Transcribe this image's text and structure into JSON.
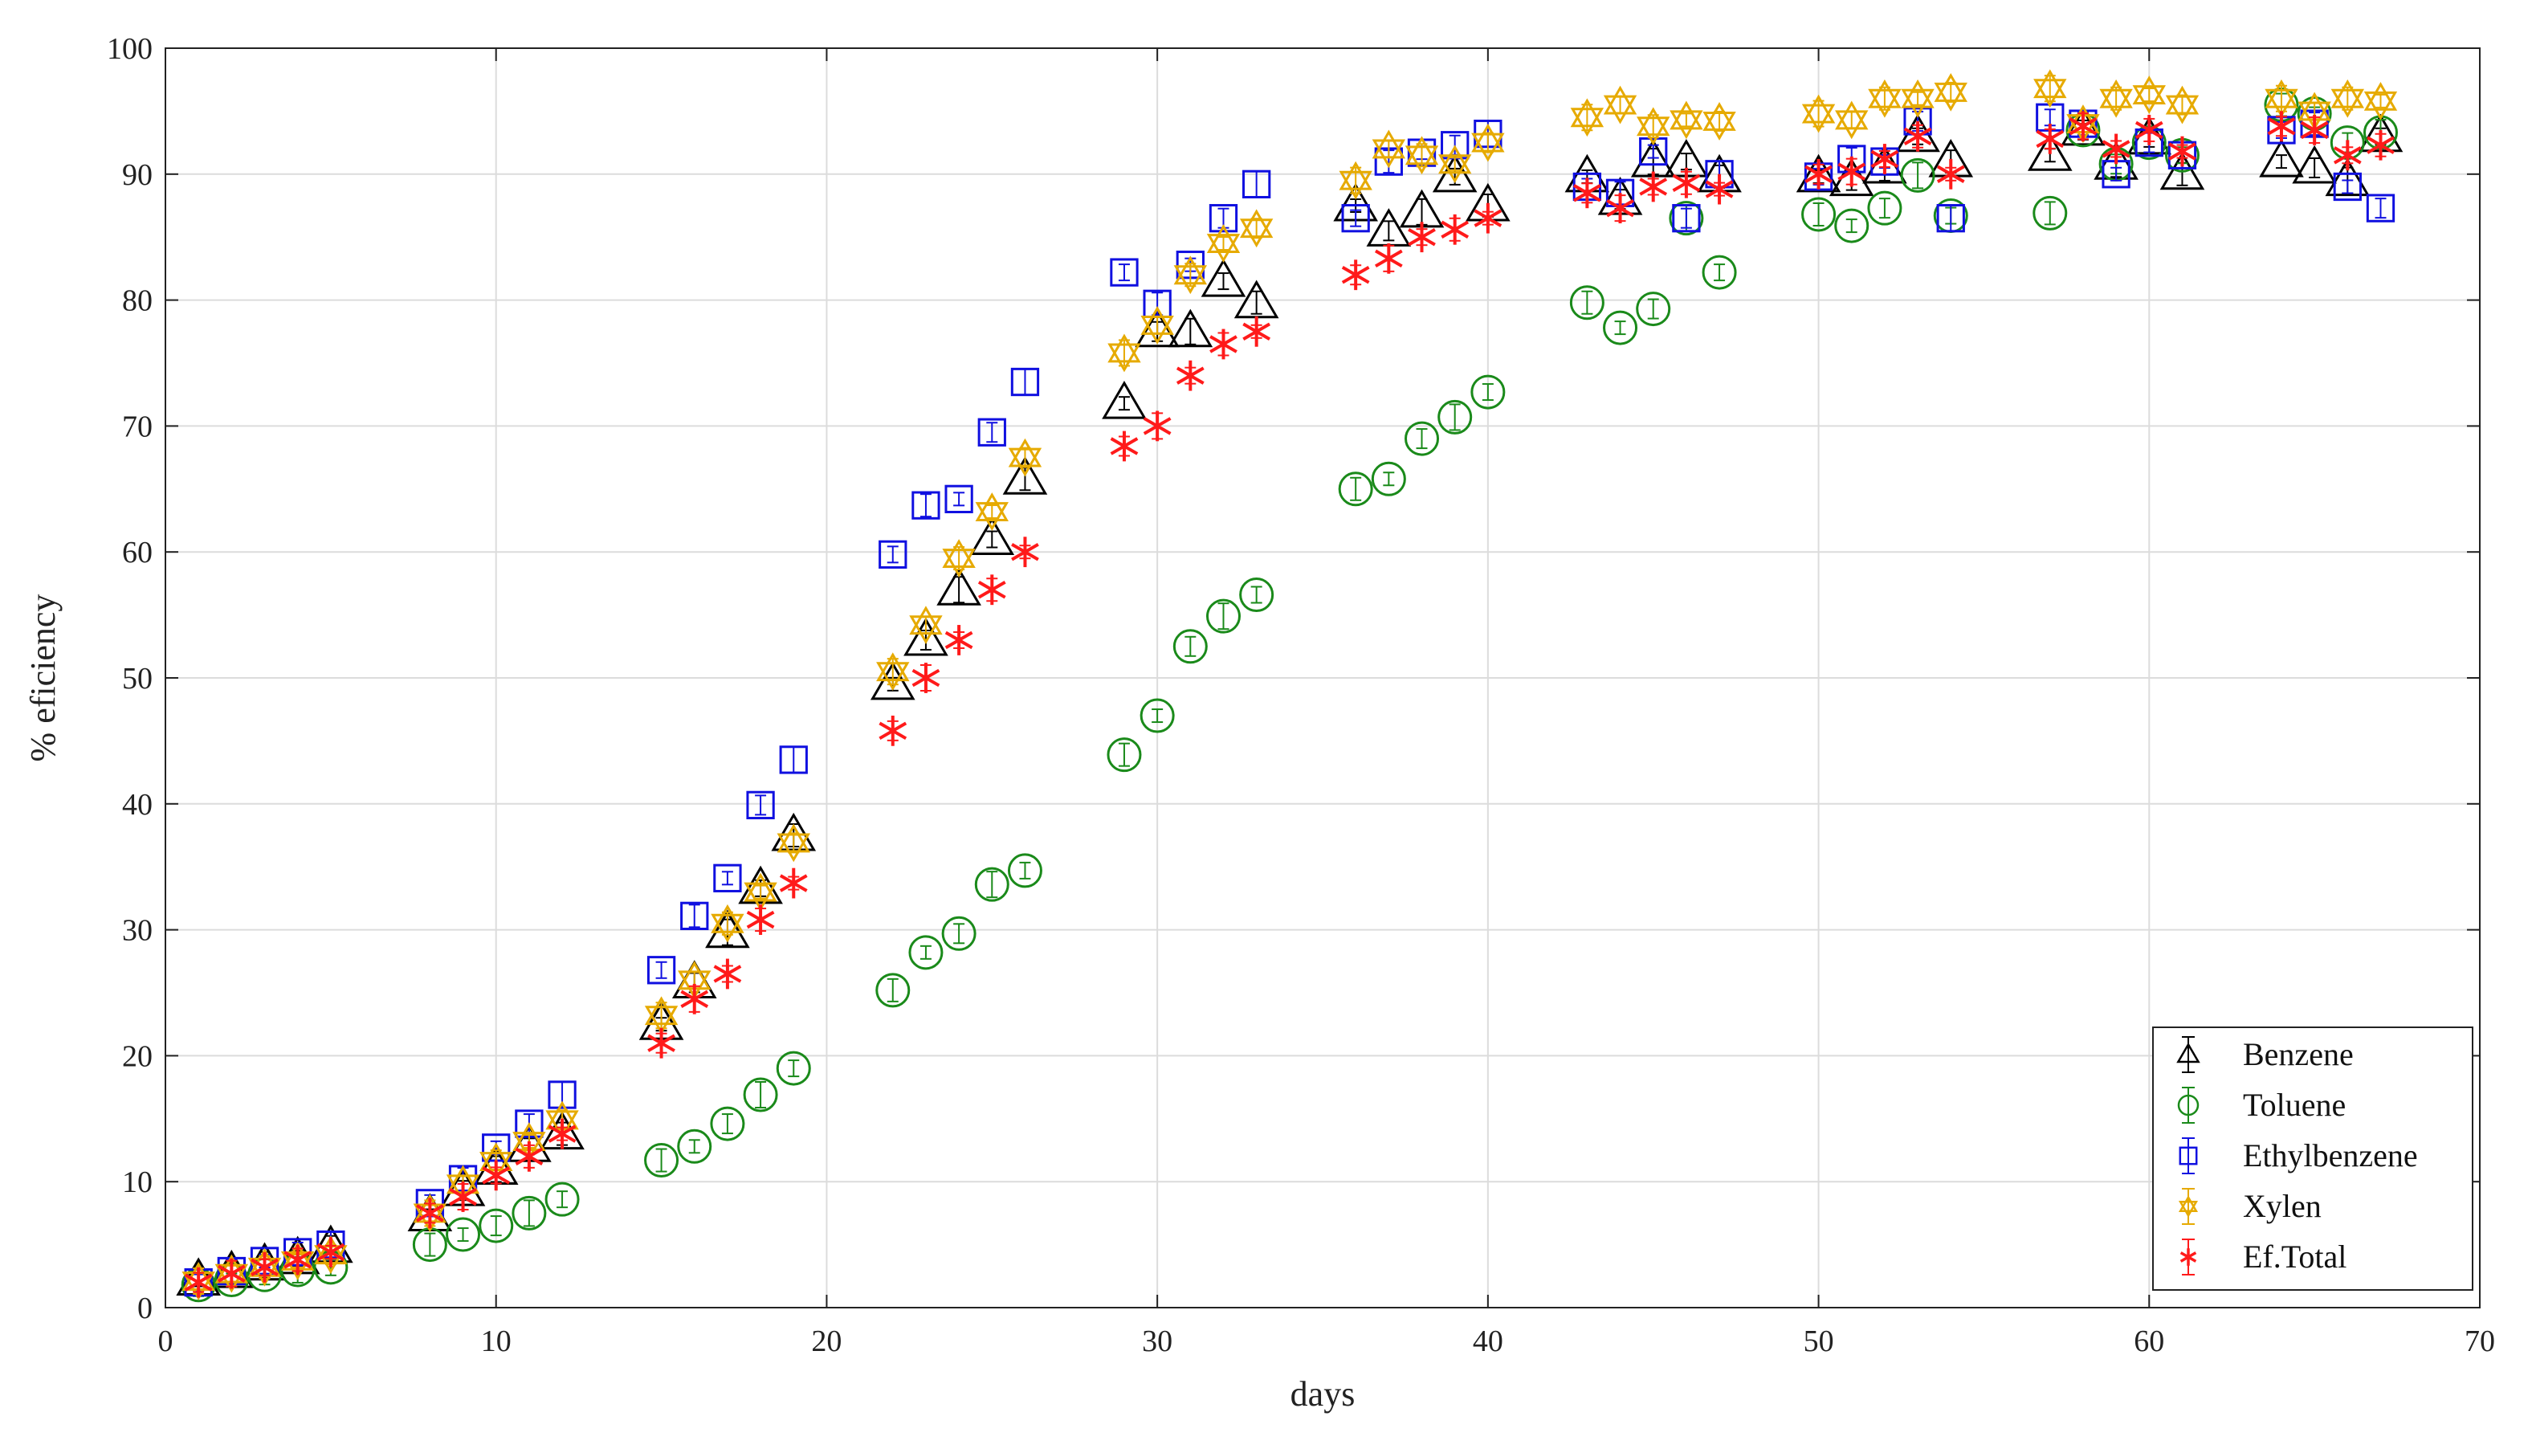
{
  "chart_data": {
    "type": "scatter",
    "title": "",
    "xlabel": "days",
    "ylabel": "% eficiency",
    "xlim": [
      0,
      70
    ],
    "ylim": [
      0,
      100
    ],
    "xticks": [
      0,
      10,
      20,
      30,
      40,
      50,
      60,
      70
    ],
    "yticks": [
      0,
      10,
      20,
      30,
      40,
      50,
      60,
      70,
      80,
      90,
      100
    ],
    "grid": true,
    "legend_position": "bottom-right",
    "x": [
      1,
      2,
      3,
      4,
      5,
      8,
      9,
      10,
      11,
      12,
      15,
      16,
      17,
      18,
      19,
      22,
      23,
      24,
      25,
      26,
      29,
      30,
      31,
      32,
      33,
      36,
      37,
      38,
      39,
      40,
      43,
      44,
      45,
      46,
      47,
      50,
      51,
      52,
      53,
      54,
      57,
      58,
      59,
      60,
      61,
      64,
      65,
      66,
      67
    ],
    "series": [
      {
        "name": "Benzene",
        "color": "#000000",
        "marker": "triangle",
        "values": [
          2.2,
          2.8,
          3.4,
          3.9,
          4.8,
          7.3,
          9.3,
          11.0,
          12.8,
          13.8,
          22.5,
          25.8,
          29.8,
          33.3,
          37.5,
          49.5,
          53.0,
          57.0,
          61.0,
          65.8,
          71.8,
          77.5,
          77.5,
          81.5,
          79.8,
          87.5,
          85.5,
          87.0,
          89.8,
          87.5,
          89.8,
          88.0,
          91.0,
          91.0,
          89.8,
          89.8,
          89.5,
          90.5,
          93.0,
          91.0,
          91.5,
          93.5,
          90.8,
          92.8,
          90.0,
          91.0,
          90.5,
          89.5,
          93.0
        ]
      },
      {
        "name": "Toluene",
        "color": "#1a8a1a",
        "marker": "circle",
        "values": [
          1.8,
          2.2,
          2.6,
          3.0,
          3.2,
          5.0,
          5.8,
          6.5,
          7.5,
          8.6,
          11.7,
          12.8,
          14.6,
          16.9,
          19.0,
          25.2,
          28.2,
          29.7,
          33.6,
          34.7,
          43.9,
          47.0,
          52.5,
          54.9,
          56.6,
          65.0,
          65.8,
          69.0,
          70.7,
          72.7,
          79.8,
          77.8,
          79.3,
          86.5,
          82.2,
          86.8,
          85.9,
          87.3,
          89.9,
          86.7,
          86.9,
          93.5,
          90.8,
          92.5,
          91.5,
          95.5,
          94.8,
          92.5,
          93.3
        ]
      },
      {
        "name": "Ethylbenzene",
        "color": "#1010e0",
        "marker": "square",
        "values": [
          2.0,
          2.9,
          3.7,
          4.4,
          5.0,
          8.3,
          10.2,
          12.7,
          14.6,
          16.9,
          26.8,
          31.1,
          34.1,
          39.9,
          43.5,
          59.8,
          63.7,
          64.2,
          69.5,
          73.5,
          82.2,
          79.7,
          82.8,
          86.5,
          89.2,
          86.5,
          91.0,
          91.7,
          92.3,
          93.2,
          89.0,
          88.5,
          91.8,
          86.5,
          90.0,
          89.8,
          91.2,
          91.0,
          94.2,
          86.5,
          94.5,
          94.0,
          90.0,
          92.5,
          91.5,
          93.5,
          94.0,
          89.0,
          87.3
        ]
      },
      {
        "name": "Xylen",
        "color": "#e6aa00",
        "marker": "hexagram",
        "values": [
          2.1,
          2.7,
          3.2,
          3.7,
          4.2,
          7.5,
          9.8,
          11.6,
          13.2,
          14.9,
          23.2,
          26.0,
          30.5,
          33.0,
          36.9,
          50.5,
          54.2,
          59.5,
          63.2,
          67.5,
          75.8,
          78.0,
          82.0,
          84.5,
          85.7,
          89.5,
          92.0,
          91.5,
          90.8,
          92.5,
          94.5,
          95.5,
          93.8,
          94.3,
          94.2,
          94.8,
          94.3,
          96.0,
          96.0,
          96.5,
          96.8,
          94.0,
          96.0,
          96.3,
          95.5,
          96.0,
          95.0,
          96.0,
          95.8
        ]
      },
      {
        "name": "Ef.Total",
        "color": "#ff1a1a",
        "marker": "asterisk",
        "values": [
          2.0,
          2.7,
          3.2,
          3.8,
          4.4,
          7.5,
          8.8,
          10.5,
          12.0,
          13.8,
          21.0,
          24.5,
          26.5,
          30.8,
          33.7,
          45.8,
          50.0,
          53.0,
          57.0,
          60.0,
          68.4,
          70.0,
          74.0,
          76.5,
          77.5,
          82.0,
          83.3,
          85.0,
          85.6,
          86.5,
          88.5,
          87.3,
          89.0,
          89.3,
          88.8,
          90.0,
          90.2,
          91.2,
          93.0,
          90.0,
          92.8,
          93.8,
          92.0,
          93.5,
          91.8,
          93.8,
          93.5,
          91.5,
          92.3
        ]
      }
    ]
  }
}
